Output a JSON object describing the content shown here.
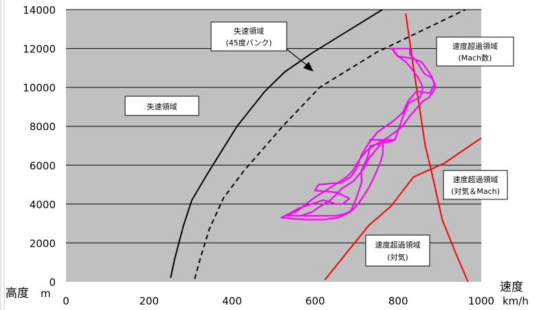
{
  "chart_data": {
    "type": "line",
    "xlabel": "速度",
    "xunit": "km/h",
    "ylabel": "高度",
    "yunit": "m",
    "xlim": [
      0,
      1000
    ],
    "ylim": [
      0,
      14000
    ],
    "xticks": [
      0,
      200,
      400,
      600,
      800,
      1000
    ],
    "yticks": [
      0,
      2000,
      4000,
      6000,
      8000,
      10000,
      12000,
      14000
    ],
    "grid": "horizontal",
    "background": "#c0c0c0",
    "series": [
      {
        "style": "solid",
        "color": "#000000",
        "points": [
          [
            252,
            200
          ],
          [
            262,
            1200
          ],
          [
            283,
            2900
          ],
          [
            303,
            4200
          ],
          [
            339,
            5500
          ],
          [
            412,
            8000
          ],
          [
            479,
            9800
          ],
          [
            527,
            10800
          ],
          [
            595,
            11800
          ],
          [
            762,
            14000
          ]
        ]
      },
      {
        "style": "dashed",
        "color": "#000000",
        "points": [
          [
            310,
            150
          ],
          [
            324,
            1250
          ],
          [
            345,
            2700
          ],
          [
            379,
            4300
          ],
          [
            428,
            5700
          ],
          [
            522,
            8000
          ],
          [
            611,
            10000
          ],
          [
            748,
            11800
          ],
          [
            962,
            14000
          ]
        ]
      },
      {
        "style": "solid",
        "color": "#ff0000",
        "points": [
          [
            818,
            13800
          ],
          [
            837,
            11000
          ],
          [
            851,
            9000
          ],
          [
            865,
            7000
          ],
          [
            881,
            5600
          ],
          [
            906,
            3200
          ],
          [
            938,
            1500
          ],
          [
            968,
            0
          ]
        ]
      },
      {
        "style": "solid",
        "color": "#ff0000",
        "points": [
          [
            623,
            100
          ],
          [
            729,
            2900
          ],
          [
            783,
            3900
          ],
          [
            837,
            5400
          ],
          [
            911,
            6100
          ],
          [
            1000,
            7400
          ]
        ]
      },
      {
        "style": "solid",
        "color": "#ff00ff",
        "points": [
          [
            778,
            12000
          ],
          [
            828,
            12000
          ],
          [
            828,
            11700
          ],
          [
            842,
            11400
          ],
          [
            863,
            10700
          ],
          [
            880,
            10500
          ],
          [
            888,
            10200
          ],
          [
            876,
            9700
          ],
          [
            844,
            9800
          ],
          [
            824,
            9300
          ],
          [
            811,
            8700
          ],
          [
            790,
            8300
          ],
          [
            770,
            8000
          ],
          [
            750,
            7700
          ],
          [
            735,
            7300
          ],
          [
            725,
            7000
          ],
          [
            711,
            6500
          ],
          [
            699,
            5800
          ],
          [
            686,
            5400
          ],
          [
            663,
            5100
          ],
          [
            608,
            5000
          ],
          [
            599,
            4700
          ],
          [
            651,
            4600
          ],
          [
            682,
            4300
          ],
          [
            666,
            4000
          ],
          [
            650,
            4000
          ],
          [
            637,
            4100
          ],
          [
            619,
            4200
          ],
          [
            591,
            4000
          ],
          [
            562,
            3800
          ],
          [
            537,
            3500
          ],
          [
            518,
            3300
          ],
          [
            575,
            3200
          ],
          [
            620,
            3200
          ],
          [
            655,
            3300
          ],
          [
            685,
            3600
          ],
          [
            699,
            4300
          ],
          [
            712,
            5100
          ],
          [
            711,
            5700
          ],
          [
            726,
            6400
          ],
          [
            733,
            7000
          ],
          [
            756,
            7100
          ],
          [
            775,
            7200
          ],
          [
            792,
            7300
          ],
          [
            813,
            8600
          ],
          [
            825,
            9200
          ],
          [
            853,
            9500
          ],
          [
            860,
            10000
          ],
          [
            848,
            10500
          ],
          [
            831,
            11000
          ],
          [
            819,
            11300
          ],
          [
            800,
            11600
          ],
          [
            785,
            12000
          ],
          [
            798,
            11600
          ],
          [
            834,
            11500
          ],
          [
            857,
            11300
          ],
          [
            870,
            10900
          ],
          [
            880,
            10600
          ],
          [
            890,
            10000
          ],
          [
            875,
            9500
          ],
          [
            860,
            9300
          ],
          [
            847,
            9000
          ],
          [
            827,
            8500
          ],
          [
            810,
            8000
          ],
          [
            792,
            7700
          ],
          [
            773,
            7400
          ],
          [
            757,
            7200
          ],
          [
            740,
            7000
          ],
          [
            727,
            6800
          ],
          [
            714,
            6500
          ],
          [
            701,
            6100
          ],
          [
            690,
            5700
          ],
          [
            676,
            5400
          ],
          [
            662,
            5200
          ],
          [
            648,
            5000
          ],
          [
            633,
            4800
          ],
          [
            618,
            4600
          ],
          [
            603,
            4400
          ],
          [
            590,
            4200
          ],
          [
            578,
            4000
          ],
          [
            566,
            3800
          ],
          [
            553,
            3600
          ],
          [
            542,
            3500
          ],
          [
            530,
            3400
          ],
          [
            540,
            3400
          ],
          [
            568,
            3400
          ],
          [
            595,
            3400
          ],
          [
            625,
            3400
          ],
          [
            652,
            3400
          ],
          [
            672,
            3500
          ],
          [
            690,
            3700
          ],
          [
            703,
            4000
          ],
          [
            716,
            4400
          ],
          [
            728,
            4800
          ],
          [
            740,
            5300
          ],
          [
            750,
            5800
          ],
          [
            758,
            6200
          ],
          [
            763,
            6600
          ],
          [
            763,
            7000
          ],
          [
            764,
            7300
          ],
          [
            768,
            7200
          ],
          [
            780,
            7200
          ],
          [
            791,
            7300
          ],
          [
            760,
            7300
          ],
          [
            731,
            7300
          ],
          [
            746,
            7300
          ],
          [
            757,
            7300
          ],
          [
            755,
            7000
          ],
          [
            743,
            6700
          ],
          [
            731,
            6400
          ],
          [
            723,
            6100
          ],
          [
            716,
            5800
          ],
          [
            705,
            5500
          ],
          [
            693,
            5200
          ],
          [
            679,
            5000
          ],
          [
            664,
            4800
          ],
          [
            651,
            4500
          ],
          [
            636,
            4200
          ],
          [
            621,
            4000
          ],
          [
            606,
            3800
          ],
          [
            594,
            3600
          ],
          [
            580,
            3500
          ],
          [
            566,
            3400
          ],
          [
            553,
            3400
          ]
        ]
      }
    ],
    "annotations": [
      {
        "text": "失速領域",
        "box": true
      },
      {
        "text": "失速領域",
        "box": true,
        "sub": "(45度バンク)"
      },
      {
        "text": "速度超過領域",
        "box": true,
        "sub": "(Mach数)"
      },
      {
        "text": "速度超過領域",
        "box": true,
        "sub": "(対気＆Mach)"
      },
      {
        "text": "速度超過領域",
        "box": true,
        "sub": "(対気)"
      }
    ]
  }
}
